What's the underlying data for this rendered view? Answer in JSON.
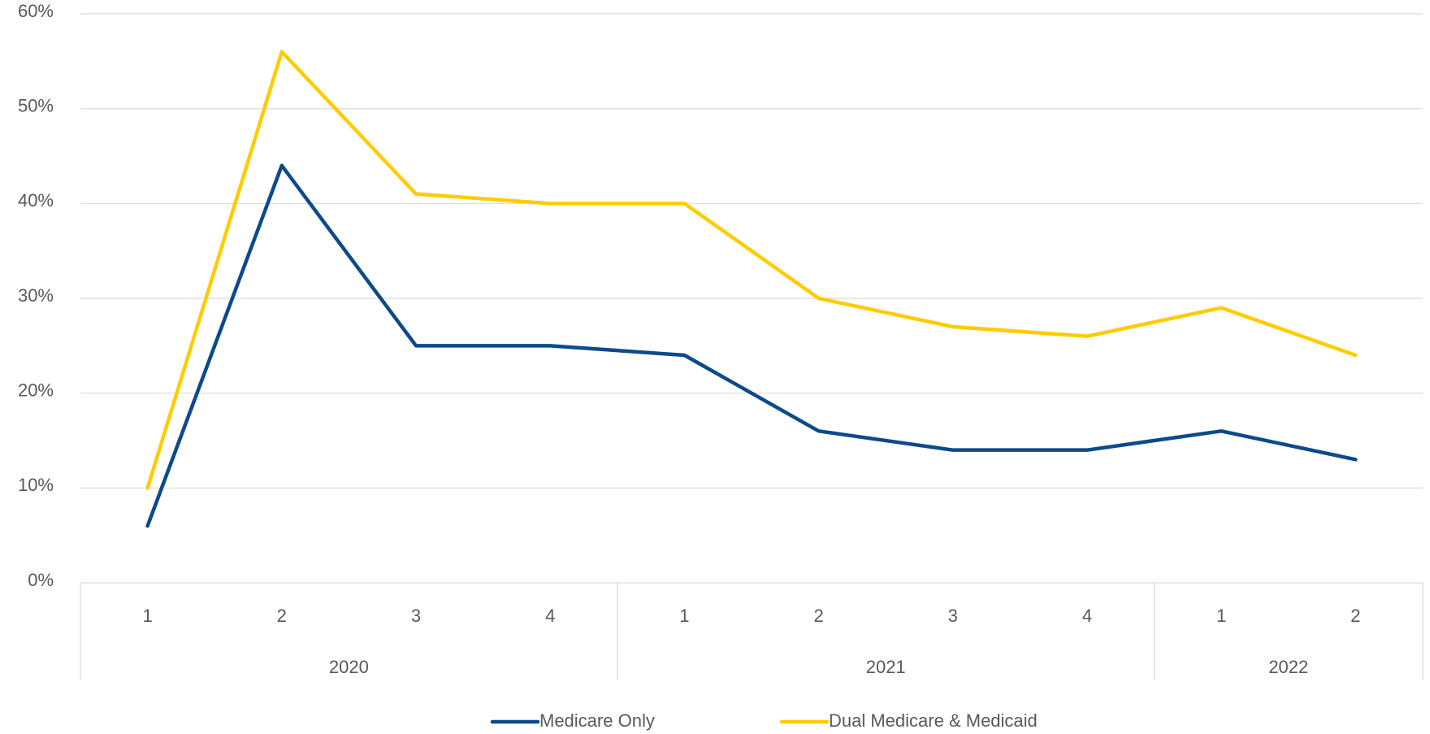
{
  "chart_data": {
    "type": "line",
    "categories": [
      "1",
      "2",
      "3",
      "4",
      "1",
      "2",
      "3",
      "4",
      "1",
      "2"
    ],
    "groups": [
      {
        "label": "2020",
        "count": 4
      },
      {
        "label": "2021",
        "count": 4
      },
      {
        "label": "2022",
        "count": 2
      }
    ],
    "series": [
      {
        "name": "Medicare Only",
        "color": "#0c4a8a",
        "values": [
          6,
          44,
          25,
          25,
          24,
          16,
          14,
          14,
          16,
          13
        ]
      },
      {
        "name": "Dual Medicare & Medicaid",
        "color": "#ffcc00",
        "values": [
          10,
          56,
          41,
          40,
          40,
          30,
          27,
          26,
          29,
          24
        ]
      }
    ],
    "ylim": [
      0,
      60
    ],
    "yticks": [
      {
        "value": 0,
        "label": "0%"
      },
      {
        "value": 10,
        "label": "10%"
      },
      {
        "value": 20,
        "label": "20%"
      },
      {
        "value": 30,
        "label": "30%"
      },
      {
        "value": 40,
        "label": "40%"
      },
      {
        "value": 50,
        "label": "50%"
      },
      {
        "value": 60,
        "label": "60%"
      }
    ],
    "grid": true,
    "legend": "bottom"
  }
}
